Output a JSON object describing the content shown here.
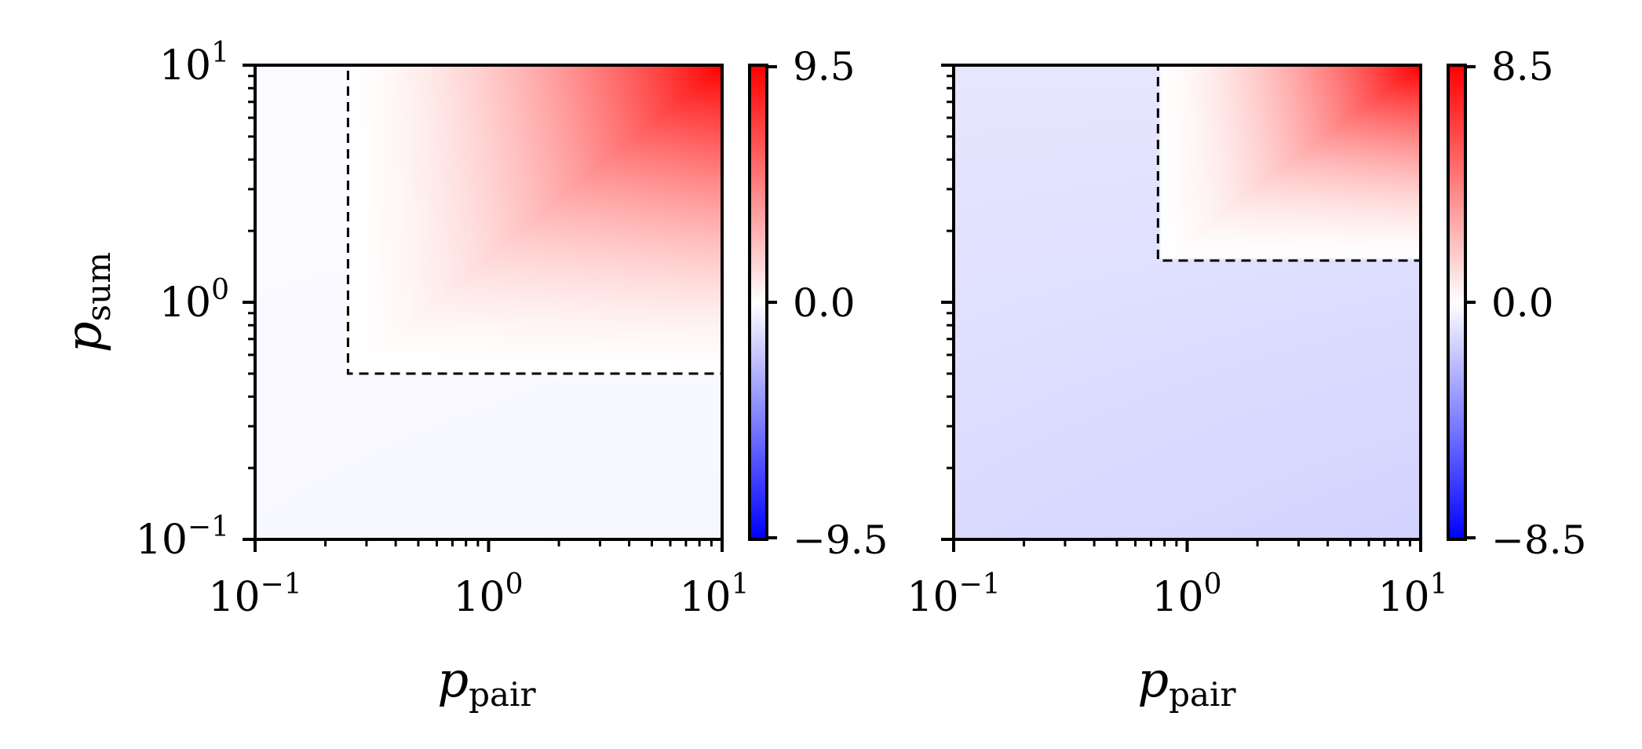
{
  "chart_data": [
    {
      "type": "heatmap",
      "panel": "left",
      "xlabel": "p",
      "xlabel_sub": "pair",
      "ylabel": "p",
      "ylabel_sub": "sum",
      "xscale": "log",
      "yscale": "log",
      "xlim": [
        0.1,
        10
      ],
      "ylim": [
        0.1,
        10
      ],
      "xtick_labels": [
        {
          "value": 0.1,
          "base": "10",
          "exp": "−1"
        },
        {
          "value": 1,
          "base": "10",
          "exp": "0"
        },
        {
          "value": 10,
          "base": "10",
          "exp": "1"
        }
      ],
      "ytick_labels": [
        {
          "value": 0.1,
          "base": "10",
          "exp": "−1"
        },
        {
          "value": 1,
          "base": "10",
          "exp": "0"
        },
        {
          "value": 10,
          "base": "10",
          "exp": "1"
        }
      ],
      "colormap": "bwr",
      "colorbar": {
        "min": -9.5,
        "max": 9.5,
        "tick_labels": [
          "−9.5",
          "0.0",
          "9.5"
        ]
      },
      "threshold_region": {
        "x_min": 0.25,
        "y_min": 0.5,
        "style": "dashed"
      },
      "value_range_estimate": {
        "min": -0.3,
        "max": 9.5
      }
    },
    {
      "type": "heatmap",
      "panel": "right",
      "xlabel": "p",
      "xlabel_sub": "pair",
      "ylabel": "",
      "xscale": "log",
      "yscale": "log",
      "xlim": [
        0.1,
        10
      ],
      "ylim": [
        0.1,
        10
      ],
      "xtick_labels": [
        {
          "value": 0.1,
          "base": "10",
          "exp": "−1"
        },
        {
          "value": 1,
          "base": "10",
          "exp": "0"
        },
        {
          "value": 10,
          "base": "10",
          "exp": "1"
        }
      ],
      "colormap": "bwr",
      "colorbar": {
        "min": -8.5,
        "max": 8.5,
        "tick_labels": [
          "−8.5",
          "0.0",
          "8.5"
        ]
      },
      "threshold_region": {
        "x_min": 0.75,
        "y_min": 1.5,
        "style": "dashed"
      },
      "value_range_estimate": {
        "min": -1.5,
        "max": 8.5
      }
    }
  ]
}
